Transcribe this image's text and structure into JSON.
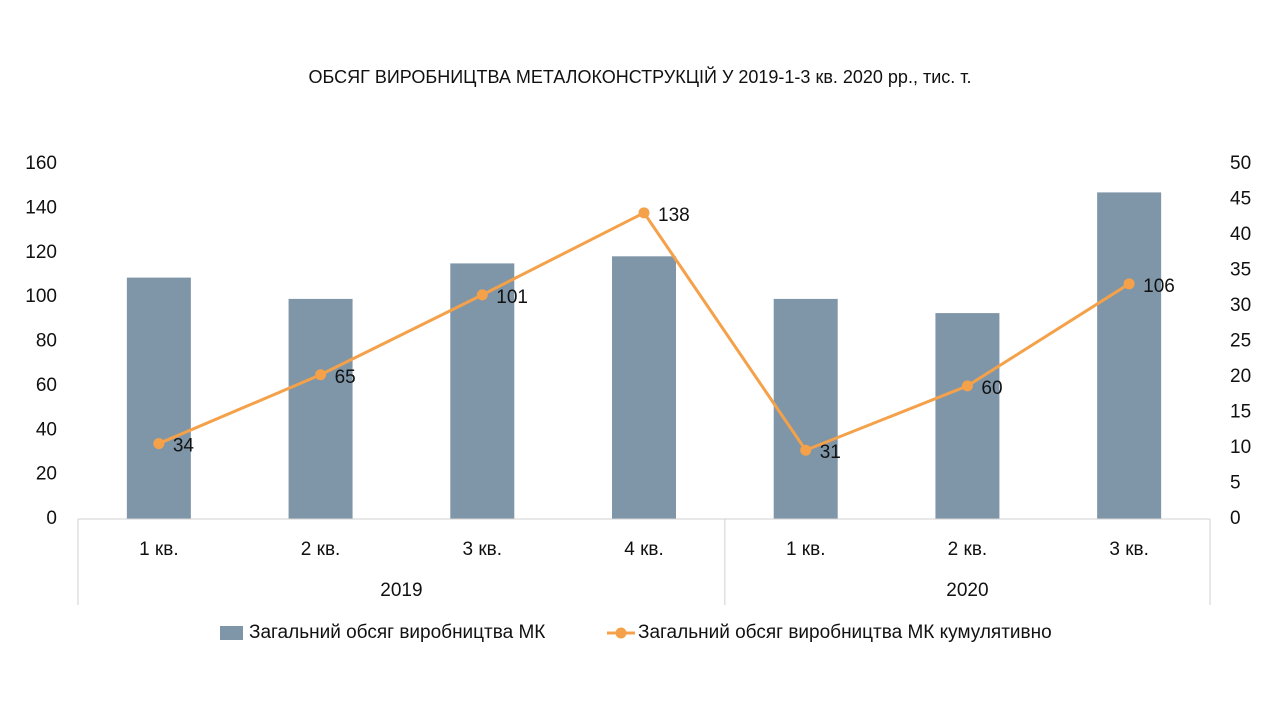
{
  "chart_data": {
    "type": "bar_line",
    "title": "ОБСЯГ ВИРОБНИЦТВА МЕТАЛОКОНСТРУКЦІЙ У 2019-1-3 кв. 2020 рр., тис. т.",
    "categories": [
      "1 кв.",
      "2 кв.",
      "3 кв.",
      "4 кв.",
      "1 кв.",
      "2 кв.",
      "3 кв."
    ],
    "groups": [
      {
        "name": "2019",
        "count": 4
      },
      {
        "name": "2020",
        "count": 3
      }
    ],
    "series": [
      {
        "name": "Загальний обсяг виробництва МК",
        "type": "bar",
        "axis": "y2",
        "color": "#7f96a8",
        "values": [
          34,
          31,
          36,
          37,
          31,
          29,
          46
        ]
      },
      {
        "name": "Загальний обсяг виробництва МК кумулятивно",
        "type": "line",
        "axis": "y",
        "color": "#f4a14a",
        "values": [
          34,
          65,
          101,
          138,
          31,
          60,
          106
        ]
      }
    ],
    "ylim": [
      0,
      160
    ],
    "yticks": [
      0,
      20,
      40,
      60,
      80,
      100,
      120,
      140,
      160
    ],
    "y2lim": [
      0,
      50
    ],
    "y2ticks": [
      0,
      5,
      10,
      15,
      20,
      25,
      30,
      35,
      40,
      45,
      50
    ],
    "grid": false,
    "legend": "bottom"
  }
}
